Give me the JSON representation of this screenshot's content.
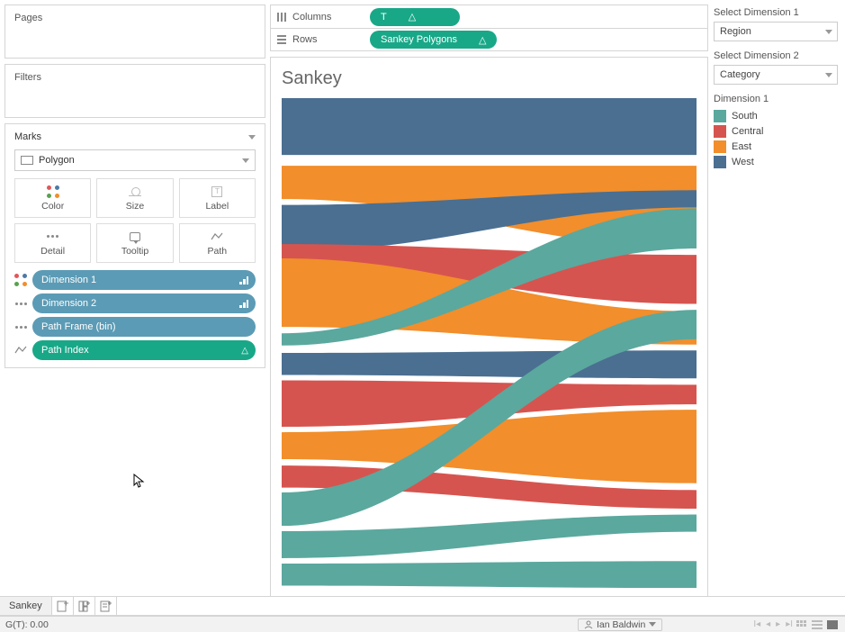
{
  "left_panels": {
    "pages_title": "Pages",
    "filters_title": "Filters",
    "marks_title": "Marks",
    "mark_type": "Polygon",
    "shelf_buttons": {
      "color": "Color",
      "size": "Size",
      "label": "Label",
      "detail": "Detail",
      "tooltip": "Tooltip",
      "path": "Path"
    },
    "pills": [
      {
        "icon": "color",
        "label": "Dimension 1",
        "style": "blue",
        "suffix": "sort"
      },
      {
        "icon": "detail",
        "label": "Dimension 2",
        "style": "blue",
        "suffix": "sort"
      },
      {
        "icon": "detail",
        "label": "Path Frame (bin)",
        "style": "blue",
        "suffix": ""
      },
      {
        "icon": "path",
        "label": "Path Index",
        "style": "green",
        "suffix": "delta"
      }
    ]
  },
  "shelves": {
    "columns_label": "Columns",
    "columns_pill": "T",
    "rows_label": "Rows",
    "rows_pill": "Sankey Polygons"
  },
  "viz": {
    "title": "Sankey",
    "colors": {
      "south": "#5ba89e",
      "central": "#d6544f",
      "east": "#f28e2b",
      "west": "#4a6f91"
    },
    "background": "#ffffff",
    "bands": [
      {
        "region": "west",
        "y0l": 0.0,
        "h0l": 0.116,
        "y0r": 0.0,
        "h0r": 0.116
      },
      {
        "region": "east",
        "y0l": 0.138,
        "h0l": 0.068,
        "y0r": 0.138,
        "h0r": 0.167
      },
      {
        "region": "west",
        "y0l": 0.218,
        "h0l": 0.095,
        "y0r": 0.188,
        "h0r": 0.035
      },
      {
        "region": "central",
        "y0l": 0.298,
        "h0l": 0.045,
        "y0r": 0.32,
        "h0r": 0.1
      },
      {
        "region": "east",
        "y0l": 0.327,
        "h0l": 0.14,
        "y0r": 0.435,
        "h0r": 0.068
      },
      {
        "region": "south",
        "y0l": 0.48,
        "h0l": 0.025,
        "y0r": 0.225,
        "h0r": 0.082
      },
      {
        "region": "west",
        "y0l": 0.52,
        "h0l": 0.045,
        "y0r": 0.515,
        "h0r": 0.057
      },
      {
        "region": "central",
        "y0l": 0.576,
        "h0l": 0.095,
        "y0r": 0.585,
        "h0r": 0.04
      },
      {
        "region": "east",
        "y0l": 0.682,
        "h0l": 0.055,
        "y0r": 0.636,
        "h0r": 0.15
      },
      {
        "region": "central",
        "y0l": 0.75,
        "h0l": 0.045,
        "y0r": 0.8,
        "h0r": 0.038
      },
      {
        "region": "south",
        "y0l": 0.805,
        "h0l": 0.068,
        "y0r": 0.432,
        "h0r": 0.06
      },
      {
        "region": "south",
        "y0l": 0.884,
        "h0l": 0.055,
        "y0r": 0.85,
        "h0r": 0.035
      },
      {
        "region": "south",
        "y0l": 0.95,
        "h0l": 0.045,
        "y0r": 0.945,
        "h0r": 0.055
      }
    ]
  },
  "right": {
    "param1_label": "Select Dimension 1",
    "param1_value": "Region",
    "param2_label": "Select Dimension 2",
    "param2_value": "Category",
    "legend_title": "Dimension 1",
    "legend_items": [
      {
        "label": "South",
        "color": "#5ba89e"
      },
      {
        "label": "Central",
        "color": "#d6544f"
      },
      {
        "label": "East",
        "color": "#f28e2b"
      },
      {
        "label": "West",
        "color": "#4a6f91"
      }
    ]
  },
  "tabs": {
    "active_tab": "Sankey"
  },
  "status": {
    "left_text": "G(T): 0.00",
    "user": "Ian Baldwin"
  }
}
